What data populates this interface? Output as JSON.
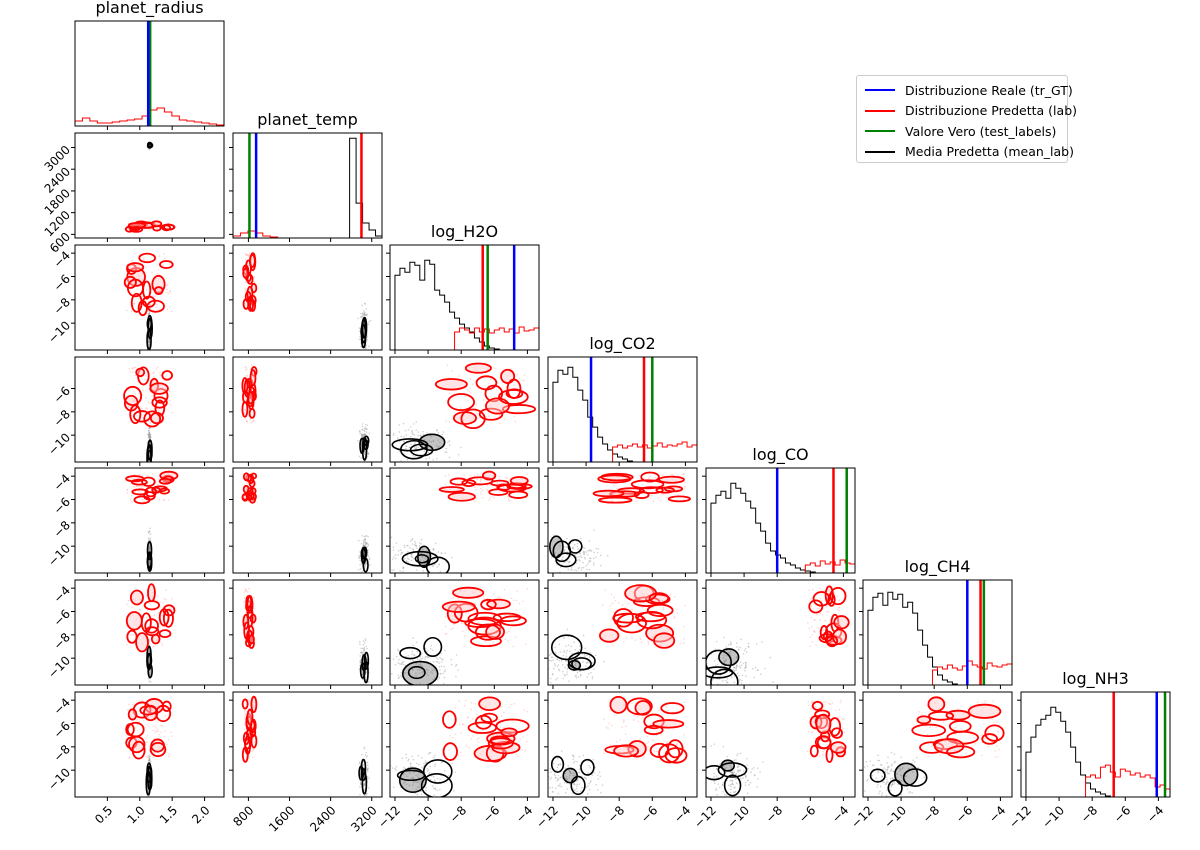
{
  "chart_data": {
    "type": "corner",
    "parameters": [
      "planet_radius",
      "planet_temp",
      "log_H2O",
      "log_CO2",
      "log_CO",
      "log_CH4",
      "log_NH3"
    ],
    "ranges": [
      [
        0.0,
        2.3
      ],
      [
        500,
        3400
      ],
      [
        -12.3,
        -3.3
      ],
      [
        -12.3,
        -3.3
      ],
      [
        -12.3,
        -3.3
      ],
      [
        -12.3,
        -3.3
      ],
      [
        -12.3,
        -3.3
      ]
    ],
    "xticks": [
      {
        "values": [
          0.5,
          1.0,
          1.5,
          2.0
        ],
        "labels": [
          "0.5",
          "1.0",
          "1.5",
          "2.0"
        ]
      },
      {
        "values": [
          800,
          1600,
          2400,
          3200
        ],
        "labels": [
          "800",
          "1600",
          "2400",
          "3200"
        ]
      },
      {
        "values": [
          -12,
          -10,
          -8,
          -6,
          -4
        ],
        "labels": [
          "−12",
          "−10",
          "−8",
          "−6",
          "−4"
        ]
      },
      {
        "values": [
          -12,
          -10,
          -8,
          -6,
          -4
        ],
        "labels": [
          "−12",
          "−10",
          "−8",
          "−6",
          "−4"
        ]
      },
      {
        "values": [
          -12,
          -10,
          -8,
          -6,
          -4
        ],
        "labels": [
          "−12",
          "−10",
          "−8",
          "−6",
          "−4"
        ]
      },
      {
        "values": [
          -12,
          -10,
          -8,
          -6,
          -4
        ],
        "labels": [
          "−12",
          "−10",
          "−8",
          "−6",
          "−4"
        ]
      },
      {
        "values": [
          -12,
          -10,
          -8,
          -6,
          -4
        ],
        "labels": [
          "−12",
          "−10",
          "−8",
          "−6",
          "−4"
        ]
      }
    ],
    "yticks": [
      null,
      {
        "values": [
          600,
          1200,
          1800,
          2400,
          3000
        ],
        "labels": [
          "600",
          "1200",
          "1800",
          "2400",
          "3000"
        ]
      },
      {
        "values": [
          -10,
          -8,
          -6,
          -4
        ],
        "labels": [
          "−10",
          "−8",
          "−6",
          "−4"
        ]
      },
      {
        "values": [
          -10,
          -8,
          -6
        ],
        "labels": [
          "−10",
          "−8",
          "−6"
        ]
      },
      {
        "values": [
          -10,
          -8,
          -6,
          -4
        ],
        "labels": [
          "−10",
          "−8",
          "−6",
          "−4"
        ]
      },
      {
        "values": [
          -10,
          -8,
          -6,
          -4
        ],
        "labels": [
          "−10",
          "−8",
          "−6",
          "−4"
        ]
      },
      {
        "values": [
          -10,
          -8,
          -6,
          -4
        ],
        "labels": [
          "−10",
          "−8",
          "−6",
          "−4"
        ]
      }
    ],
    "reference_lines": {
      "tr_GT": [
        1.13,
        950,
        -4.8,
        -9.7,
        -8.0,
        -6.0,
        -4.1
      ],
      "test_labels": [
        1.16,
        820,
        -6.4,
        -6.0,
        -3.8,
        -5.0,
        -3.6
      ],
      "mean_lab": [
        1.15,
        3000,
        -6.7,
        -6.5,
        -4.6,
        -5.2,
        -6.7
      ]
    },
    "predicted_clusters": {
      "lab": {
        "centers": [
          1.15,
          820,
          -6.5,
          -6.5,
          -5.0,
          -6.5,
          -6.5
        ],
        "spreads": [
          0.35,
          100,
          2.5,
          2.5,
          1.2,
          2.5,
          2.5
        ]
      },
      "tr_GT": {
        "centers": [
          1.15,
          3050,
          -10.5,
          -10.8,
          -10.8,
          -10.5,
          -10.5
        ],
        "spreads": [
          0.01,
          40,
          0.9,
          0.8,
          0.8,
          0.9,
          0.9
        ]
      }
    },
    "diagonal_histograms": {
      "lab": [
        [
          0.05,
          0.08,
          0.05,
          0.03,
          0.03,
          0.04,
          0.05,
          0.06,
          0.07,
          0.1,
          0.16,
          0.18,
          0.14,
          0.1,
          0.06,
          0.05,
          0.04,
          0.03,
          0.02,
          0.01
        ],
        [
          0.02,
          0.05,
          0.07,
          0.05,
          0.02,
          0.01,
          0.0,
          0.0,
          0.0,
          0.0,
          0.0,
          0.0,
          0.0,
          0.0,
          0.0,
          0.0,
          0.0,
          0.0,
          0.0,
          0.0
        ],
        [
          0.0,
          0.0,
          0.0,
          0.0,
          0.0,
          0.0,
          0.0,
          0.0,
          0.0,
          0.0,
          0.0,
          0.0,
          0.0,
          0.18,
          0.22,
          0.2,
          0.17,
          0.22,
          0.18,
          0.21,
          0.17,
          0.2,
          0.22,
          0.18,
          0.21,
          0.17,
          0.23,
          0.19,
          0.2,
          0.22
        ],
        [
          0.0,
          0.0,
          0.0,
          0.0,
          0.0,
          0.0,
          0.0,
          0.0,
          0.0,
          0.0,
          0.0,
          0.0,
          0.0,
          0.15,
          0.17,
          0.14,
          0.16,
          0.18,
          0.15,
          0.17,
          0.14,
          0.16,
          0.19,
          0.15,
          0.17,
          0.16,
          0.18,
          0.2,
          0.15,
          0.17
        ],
        [
          0.0,
          0.0,
          0.0,
          0.0,
          0.0,
          0.0,
          0.0,
          0.0,
          0.0,
          0.0,
          0.0,
          0.0,
          0.0,
          0.0,
          0.0,
          0.0,
          0.0,
          0.0,
          0.0,
          0.0,
          0.08,
          0.1,
          0.07,
          0.12,
          0.09,
          0.11,
          0.08,
          0.13,
          0.1,
          0.09
        ],
        [
          0.0,
          0.0,
          0.0,
          0.0,
          0.0,
          0.0,
          0.0,
          0.0,
          0.0,
          0.0,
          0.0,
          0.0,
          0.0,
          0.0,
          0.15,
          0.18,
          0.16,
          0.2,
          0.17,
          0.15,
          0.19,
          0.24,
          0.2,
          0.18,
          0.16,
          0.22,
          0.19,
          0.18,
          0.2,
          0.21
        ],
        [
          0.0,
          0.0,
          0.0,
          0.0,
          0.0,
          0.0,
          0.0,
          0.0,
          0.0,
          0.0,
          0.0,
          0.0,
          0.0,
          0.2,
          0.22,
          0.19,
          0.3,
          0.32,
          0.25,
          0.2,
          0.28,
          0.26,
          0.22,
          0.24,
          0.2,
          0.22,
          0.19,
          0.1,
          0.12,
          0.08
        ]
      ],
      "tr_GT": [
        [
          0.0,
          0.0,
          0.0,
          0.0,
          0.0,
          0.0,
          0.0,
          0.0,
          0.0,
          0.0,
          0.0,
          0.0,
          0.0,
          0.0,
          0.0,
          0.0,
          0.0,
          0.0,
          0.0,
          0.0
        ],
        [
          0.0,
          0.0,
          0.0,
          0.0,
          0.0,
          0.0,
          0.0,
          0.0,
          0.0,
          0.0,
          0.0,
          0.0,
          0.0,
          0.0,
          0.0,
          0.0,
          0.0,
          0.0,
          1.0,
          0.35,
          0.15,
          0.08,
          0.02
        ],
        [
          0.0,
          0.75,
          0.82,
          0.78,
          0.88,
          0.85,
          0.7,
          0.9,
          0.86,
          0.6,
          0.55,
          0.48,
          0.38,
          0.32,
          0.26,
          0.22,
          0.18,
          0.12,
          0.08,
          0.04,
          0.02,
          0.01,
          0.0,
          0.0,
          0.0,
          0.0,
          0.0,
          0.0,
          0.0,
          0.0
        ],
        [
          0.0,
          0.8,
          0.92,
          0.88,
          0.95,
          0.85,
          0.72,
          0.62,
          0.45,
          0.35,
          0.25,
          0.18,
          0.12,
          0.08,
          0.05,
          0.03,
          0.01,
          0.0,
          0.0,
          0.0,
          0.0,
          0.0,
          0.0,
          0.0,
          0.0,
          0.0,
          0.0,
          0.0,
          0.0,
          0.0
        ],
        [
          0.0,
          0.7,
          0.78,
          0.82,
          0.75,
          0.9,
          0.85,
          0.8,
          0.72,
          0.65,
          0.5,
          0.42,
          0.3,
          0.22,
          0.18,
          0.15,
          0.1,
          0.08,
          0.05,
          0.03,
          0.02,
          0.01,
          0.0,
          0.0,
          0.0,
          0.0,
          0.0,
          0.0,
          0.0,
          0.0
        ],
        [
          0.0,
          0.75,
          0.88,
          0.92,
          0.8,
          0.93,
          0.86,
          0.91,
          0.78,
          0.83,
          0.72,
          0.55,
          0.4,
          0.28,
          0.18,
          0.1,
          0.05,
          0.03,
          0.01,
          0.0,
          0.0,
          0.0,
          0.0,
          0.0,
          0.0,
          0.0,
          0.0,
          0.0,
          0.0,
          0.0
        ],
        [
          0.0,
          0.45,
          0.6,
          0.72,
          0.78,
          0.82,
          0.9,
          0.85,
          0.76,
          0.65,
          0.5,
          0.35,
          0.22,
          0.14,
          0.08,
          0.05,
          0.03,
          0.01,
          0.0,
          0.0,
          0.0,
          0.0,
          0.0,
          0.0,
          0.0,
          0.0,
          0.0,
          0.0,
          0.0,
          0.0
        ]
      ]
    },
    "legend": {
      "position": "top-right",
      "items": [
        {
          "label": "Distribuzione Reale (tr_GT)",
          "color": "#0000ff"
        },
        {
          "label": "Distribuzione Predetta (lab)",
          "color": "#ff0000"
        },
        {
          "label": "Valore Vero (test_labels)",
          "color": "#008000"
        },
        {
          "label": "Media Predetta (mean_lab)",
          "color": "#000000"
        }
      ]
    },
    "colors": {
      "true": "#0000ff",
      "pred": "#ff0000",
      "test": "#008000",
      "mean": "#000000",
      "hist_true": "#000000"
    }
  }
}
